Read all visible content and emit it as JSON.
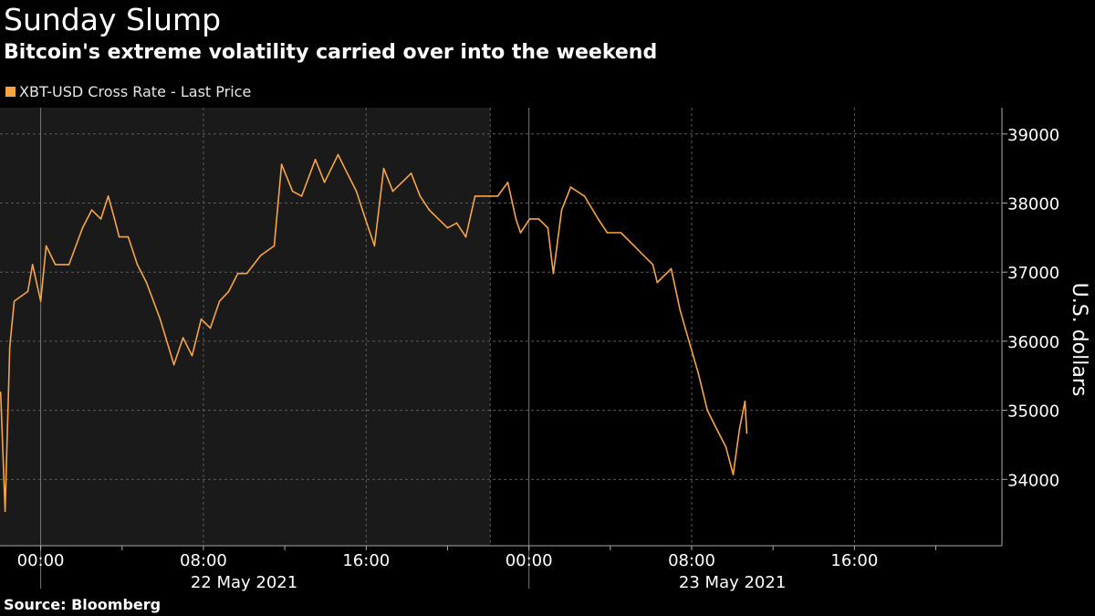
{
  "header": {
    "title": "Sunday Slump",
    "subtitle": "Bitcoin's extreme volatility carried over into the weekend"
  },
  "footer": {
    "source": "Source: Bloomberg"
  },
  "colors": {
    "series": "#f7a544",
    "weekend_shade": "#1a1a1a",
    "grid": "#5a5a5a",
    "background": "#000000"
  },
  "chart_data": {
    "type": "line",
    "title": "Sunday Slump",
    "subtitle": "Bitcoin's extreme volatility carried over into the weekend",
    "legend": {
      "placement": "top-left",
      "entries": [
        "XBT-USD Cross Rate - Last Price"
      ]
    },
    "xlabel": "",
    "x_units": "hours since 00:00, 22 May 2021",
    "xlim": [
      -2,
      47.25
    ],
    "x_ticks": [
      {
        "h": 0,
        "label": "00:00"
      },
      {
        "h": 8,
        "label": "08:00"
      },
      {
        "h": 16,
        "label": "16:00"
      },
      {
        "h": 24,
        "label": "00:00"
      },
      {
        "h": 32,
        "label": "08:00"
      },
      {
        "h": 40,
        "label": "16:00"
      }
    ],
    "x_date_labels": [
      {
        "h": 10,
        "label": "22 May 2021"
      },
      {
        "h": 34,
        "label": "23 May 2021"
      }
    ],
    "shaded_range": [
      -2,
      22.1
    ],
    "ylabel": "U.S. dollars",
    "ylim": [
      33040,
      39380
    ],
    "y_ticks": [
      34000,
      35000,
      36000,
      37000,
      38000,
      39000
    ],
    "grid": true,
    "series": [
      {
        "name": "XBT-USD Cross Rate - Last Price",
        "x": [
          -1.97,
          -1.75,
          -1.52,
          -1.3,
          -0.63,
          -0.4,
          0,
          0.27,
          0.72,
          1.39,
          2.06,
          2.51,
          2.96,
          3.32,
          3.63,
          3.86,
          4.3,
          4.75,
          5.2,
          5.87,
          6.55,
          7.0,
          7.44,
          7.89,
          8.34,
          8.79,
          9.24,
          9.69,
          10.13,
          10.81,
          11.48,
          11.84,
          12.38,
          12.83,
          13.5,
          13.95,
          14.62,
          15.07,
          15.52,
          15.96,
          16.41,
          16.86,
          17.31,
          17.76,
          18.21,
          18.65,
          19.1,
          19.55,
          20.0,
          20.45,
          20.9,
          21.35,
          21.79,
          22.47,
          22.96,
          23.36,
          23.59,
          24.04,
          24.48,
          24.93,
          25.2,
          25.61,
          26.05,
          26.73,
          27.4,
          27.85,
          28.52,
          28.97,
          29.64,
          30.09,
          30.31,
          30.99,
          31.43,
          31.88,
          32.33,
          32.77,
          33.23,
          33.68,
          34.04,
          34.35,
          34.62,
          34.71
        ],
        "values": [
          35260,
          33540,
          35920,
          36580,
          36720,
          37110,
          36580,
          37380,
          37110,
          37110,
          37640,
          37900,
          37770,
          38100,
          37770,
          37510,
          37510,
          37110,
          36850,
          36320,
          35660,
          36050,
          35790,
          36320,
          36190,
          36580,
          36720,
          36980,
          36980,
          37240,
          37380,
          38560,
          38170,
          38100,
          38630,
          38300,
          38700,
          38430,
          38170,
          37770,
          37380,
          38500,
          38170,
          38300,
          38430,
          38100,
          37900,
          37770,
          37640,
          37710,
          37510,
          38100,
          38100,
          38100,
          38300,
          37770,
          37570,
          37770,
          37770,
          37640,
          36980,
          37900,
          38230,
          38100,
          37770,
          37570,
          37570,
          37440,
          37240,
          37110,
          36850,
          37050,
          36450,
          35990,
          35530,
          35000,
          34730,
          34470,
          34070,
          34730,
          35130,
          34670
        ]
      }
    ]
  }
}
